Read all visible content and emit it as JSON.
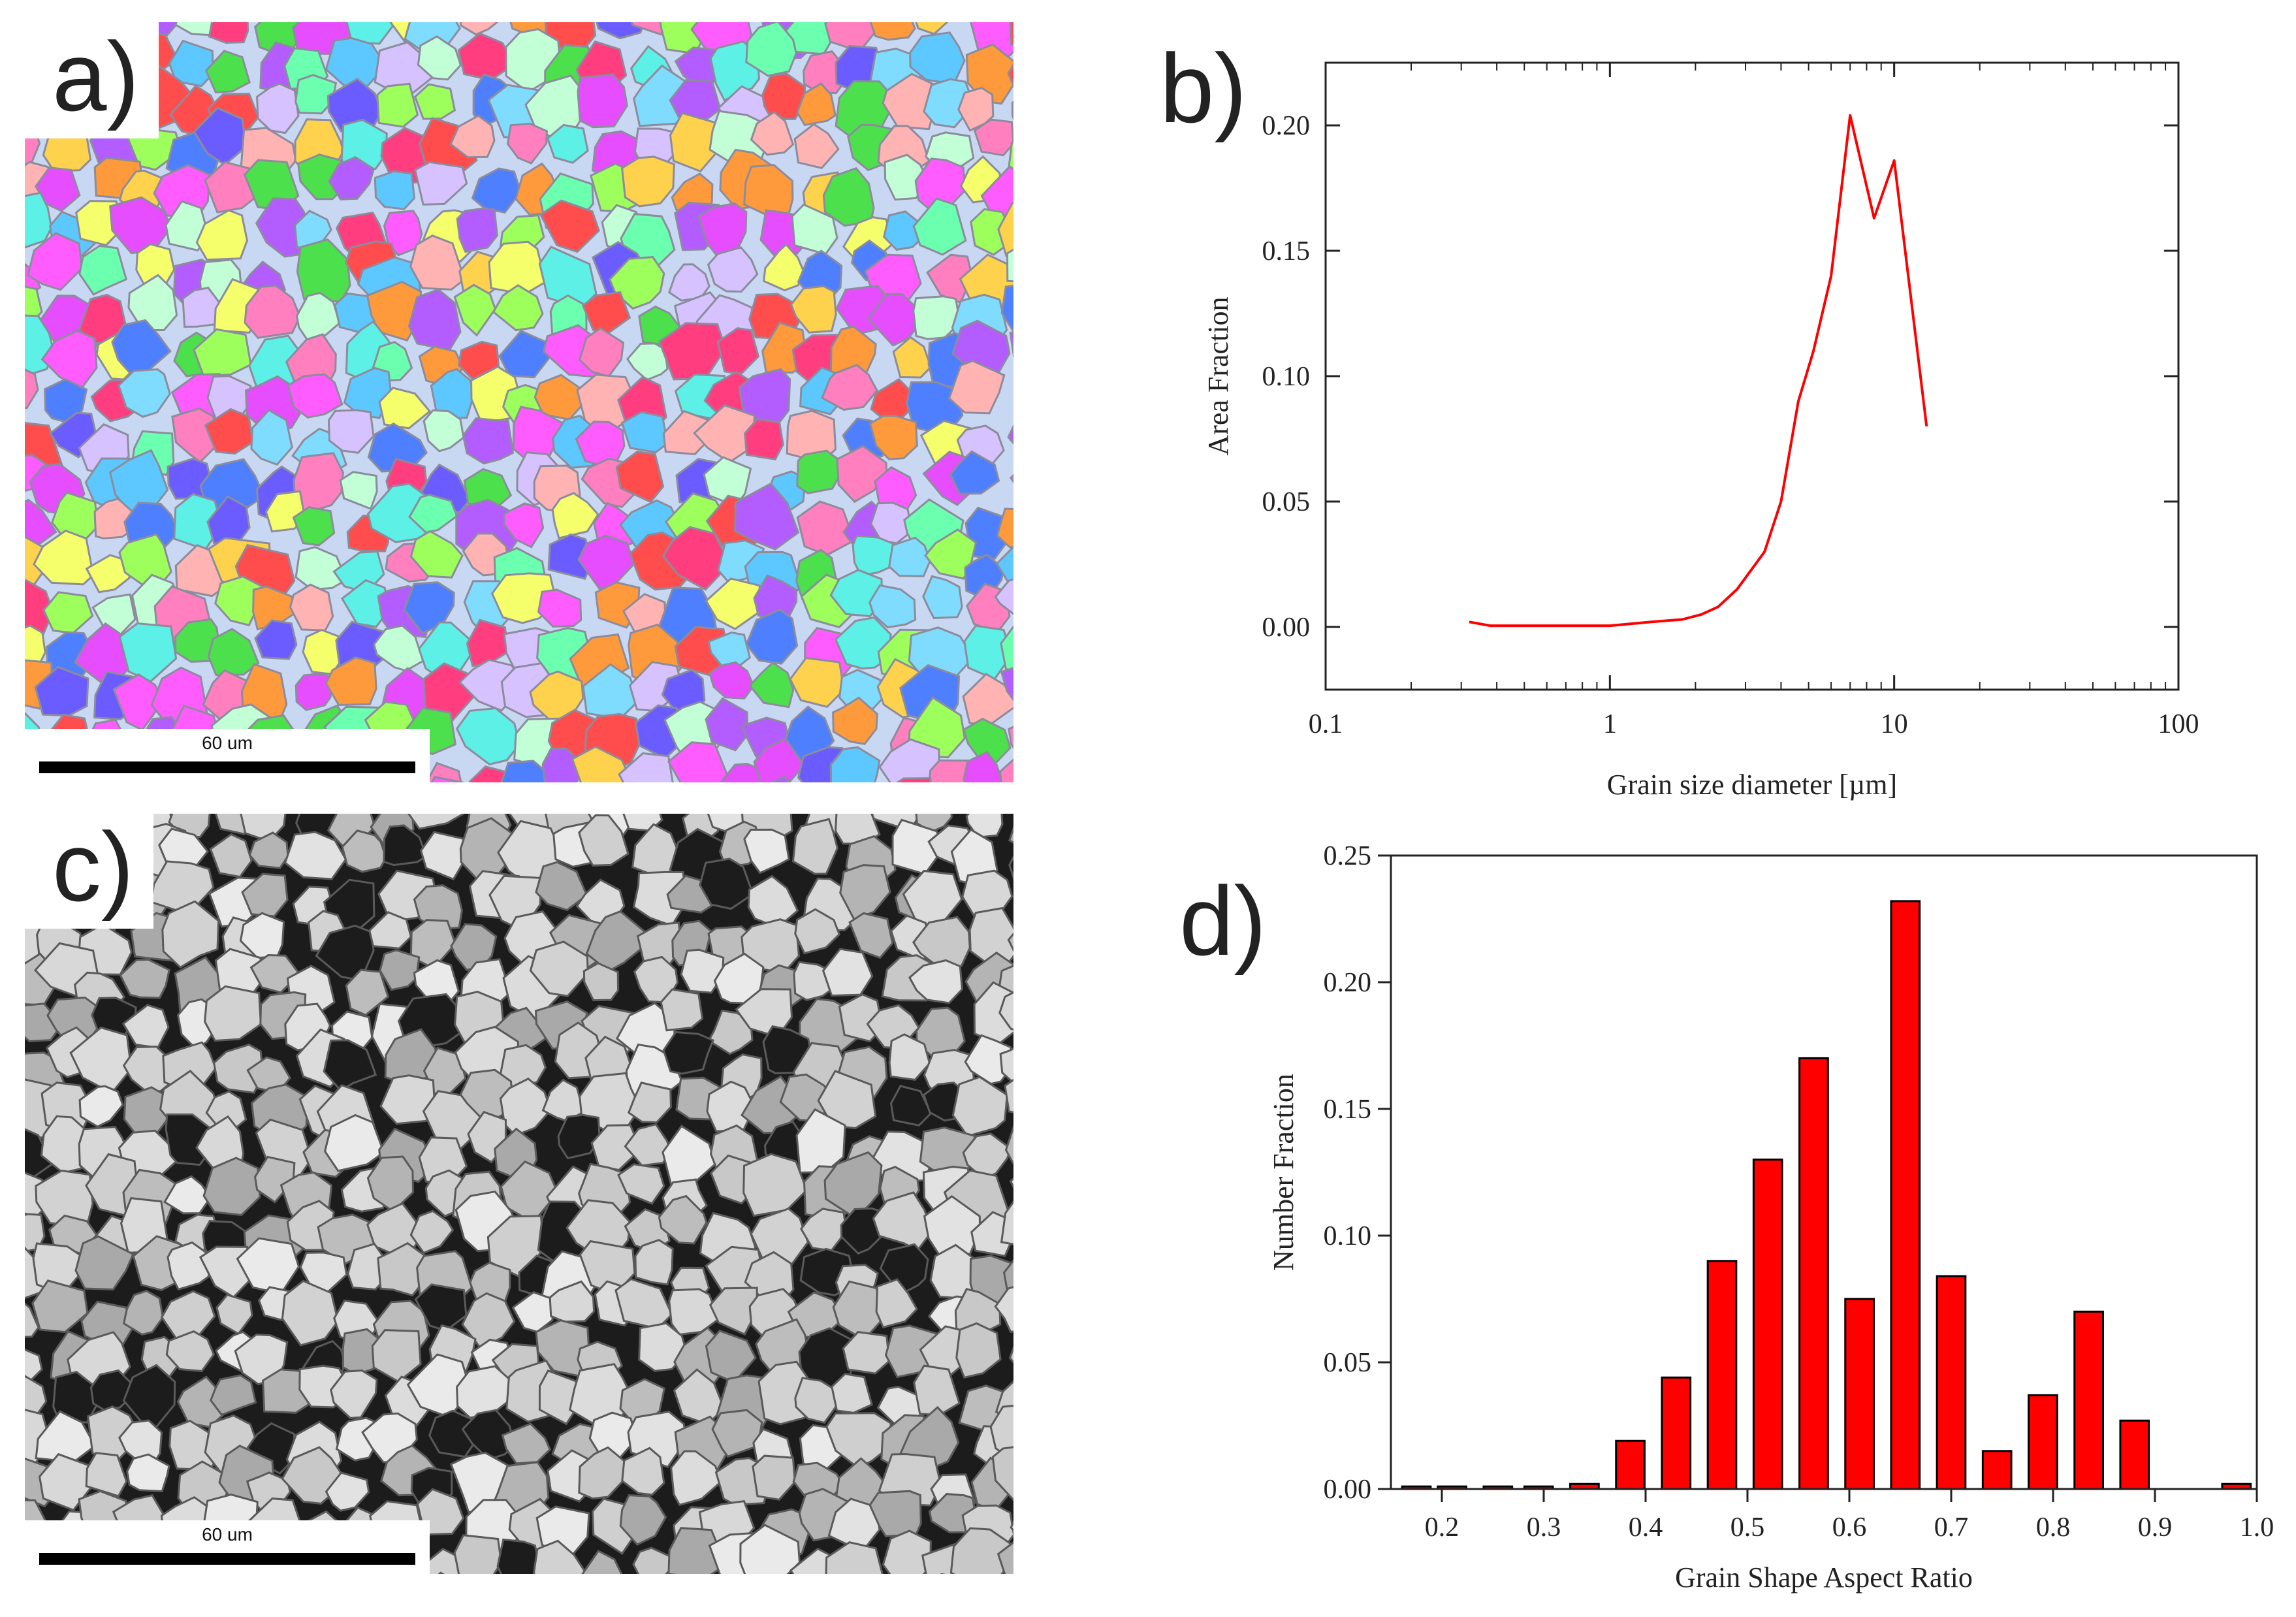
{
  "panels": {
    "a": {
      "letter": "a)",
      "scale_label": "60 um"
    },
    "b": {
      "letter": "b)"
    },
    "c": {
      "letter": "c)",
      "scale_label": "60 um"
    },
    "d": {
      "letter": "d)"
    }
  },
  "colors": {
    "series": "#ff0000",
    "axis": "#222222"
  },
  "chart_data": [
    {
      "id": "b",
      "type": "line",
      "title": "",
      "xlabel": "Grain size diameter [µm]",
      "ylabel": "Area Fraction",
      "xscale": "log",
      "xlim": [
        0.1,
        100
      ],
      "ylim": [
        -0.025,
        0.225
      ],
      "xticks": [
        0.1,
        1,
        10,
        100
      ],
      "xtick_labels": [
        "0.1",
        "1",
        "10",
        "100"
      ],
      "yticks": [
        0,
        0.05,
        0.1,
        0.15,
        0.2
      ],
      "ytick_labels": [
        "0.00",
        "0.05",
        "0.10",
        "0.15",
        "0.20"
      ],
      "series": [
        {
          "name": "Area Fraction",
          "x": [
            0.32,
            0.38,
            0.5,
            0.7,
            1.0,
            1.4,
            1.8,
            2.1,
            2.4,
            2.8,
            3.5,
            4.0,
            4.6,
            5.2,
            6.0,
            7.0,
            8.5,
            10.0,
            13.0
          ],
          "y": [
            0.002,
            0.0005,
            0.0005,
            0.0005,
            0.0005,
            0.002,
            0.003,
            0.005,
            0.008,
            0.015,
            0.03,
            0.05,
            0.09,
            0.11,
            0.14,
            0.204,
            0.163,
            0.186,
            0.08
          ]
        }
      ]
    },
    {
      "id": "d",
      "type": "bar",
      "title": "",
      "xlabel": "Grain Shape Aspect Ratio",
      "ylabel": "Number Fraction",
      "xlim": [
        0.15,
        1.0
      ],
      "ylim": [
        0,
        0.25
      ],
      "xticks": [
        0.2,
        0.3,
        0.4,
        0.5,
        0.6,
        0.7,
        0.8,
        0.9,
        1.0
      ],
      "xtick_labels": [
        "0.2",
        "0.3",
        "0.4",
        "0.5",
        "0.6",
        "0.7",
        "0.8",
        "0.9",
        "1.0"
      ],
      "yticks": [
        0,
        0.05,
        0.1,
        0.15,
        0.2,
        0.25
      ],
      "ytick_labels": [
        "0.00",
        "0.05",
        "0.10",
        "0.15",
        "0.20",
        "0.25"
      ],
      "bar_width": 0.028,
      "x": [
        0.175,
        0.21,
        0.255,
        0.295,
        0.34,
        0.385,
        0.43,
        0.475,
        0.52,
        0.565,
        0.61,
        0.655,
        0.7,
        0.745,
        0.79,
        0.835,
        0.88,
        0.925,
        0.98
      ],
      "values": [
        0.001,
        0.001,
        0.001,
        0.001,
        0.002,
        0.019,
        0.044,
        0.09,
        0.13,
        0.17,
        0.075,
        0.232,
        0.084,
        0.015,
        0.037,
        0.07,
        0.027,
        0.0,
        0.002
      ]
    }
  ]
}
